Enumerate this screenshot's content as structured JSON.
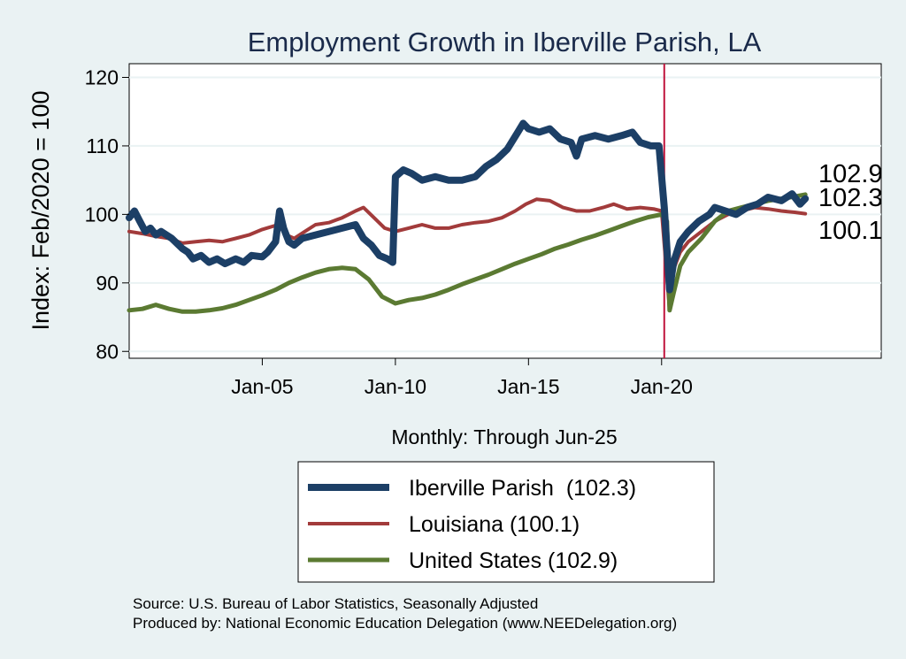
{
  "chart_data": {
    "type": "line",
    "title": "Employment Growth in Iberville Parish, LA",
    "ylabel": "Index: Feb/2020 = 100",
    "xlabel": "Monthly: Through Jun-25",
    "ylim": [
      79,
      122
    ],
    "yticks": [
      80,
      90,
      100,
      110,
      120
    ],
    "xlim": [
      2000.0,
      2028.25
    ],
    "xticks": [
      {
        "value": 2005.0,
        "label": "Jan-05"
      },
      {
        "value": 2010.0,
        "label": "Jan-10"
      },
      {
        "value": 2015.0,
        "label": "Jan-15"
      },
      {
        "value": 2020.0,
        "label": "Jan-20"
      }
    ],
    "reference_line": {
      "x": 2020.1,
      "color": "#c0143c"
    },
    "grid": true,
    "legend": {
      "placement": "bottom"
    },
    "end_labels": [
      "102.9",
      "102.3",
      "100.1"
    ],
    "series": [
      {
        "name": "Iberville Parish  (102.3)",
        "color": "#1c3f66",
        "width": 8,
        "points": [
          [
            2000.0,
            99.5
          ],
          [
            2000.2,
            100.5
          ],
          [
            2000.4,
            99.0
          ],
          [
            2000.6,
            97.5
          ],
          [
            2000.8,
            98.0
          ],
          [
            2001.0,
            97.0
          ],
          [
            2001.2,
            97.5
          ],
          [
            2001.6,
            96.5
          ],
          [
            2002.0,
            95.0
          ],
          [
            2002.2,
            94.5
          ],
          [
            2002.4,
            93.5
          ],
          [
            2002.7,
            94.0
          ],
          [
            2003.0,
            93.0
          ],
          [
            2003.3,
            93.5
          ],
          [
            2003.6,
            92.8
          ],
          [
            2004.0,
            93.5
          ],
          [
            2004.3,
            93.0
          ],
          [
            2004.6,
            94.0
          ],
          [
            2005.0,
            93.8
          ],
          [
            2005.2,
            94.5
          ],
          [
            2005.5,
            96.0
          ],
          [
            2005.65,
            100.5
          ],
          [
            2005.8,
            98.0
          ],
          [
            2006.0,
            96.0
          ],
          [
            2006.2,
            95.5
          ],
          [
            2006.5,
            96.5
          ],
          [
            2007.0,
            97.0
          ],
          [
            2007.5,
            97.5
          ],
          [
            2008.0,
            98.0
          ],
          [
            2008.5,
            98.5
          ],
          [
            2008.8,
            96.5
          ],
          [
            2009.1,
            95.5
          ],
          [
            2009.4,
            94.0
          ],
          [
            2009.7,
            93.5
          ],
          [
            2009.9,
            93.0
          ],
          [
            2010.0,
            105.5
          ],
          [
            2010.3,
            106.5
          ],
          [
            2010.6,
            106.0
          ],
          [
            2011.0,
            105.0
          ],
          [
            2011.5,
            105.5
          ],
          [
            2012.0,
            105.0
          ],
          [
            2012.5,
            105.0
          ],
          [
            2013.0,
            105.5
          ],
          [
            2013.4,
            107.0
          ],
          [
            2013.8,
            108.0
          ],
          [
            2014.2,
            109.5
          ],
          [
            2014.6,
            112.0
          ],
          [
            2014.8,
            113.3
          ],
          [
            2015.0,
            112.5
          ],
          [
            2015.4,
            112.0
          ],
          [
            2015.8,
            112.5
          ],
          [
            2016.2,
            111.0
          ],
          [
            2016.6,
            110.5
          ],
          [
            2016.8,
            108.5
          ],
          [
            2017.0,
            111.0
          ],
          [
            2017.5,
            111.5
          ],
          [
            2018.0,
            111.0
          ],
          [
            2018.5,
            111.5
          ],
          [
            2018.9,
            112.0
          ],
          [
            2019.2,
            110.5
          ],
          [
            2019.6,
            110.0
          ],
          [
            2019.9,
            110.0
          ],
          [
            2020.1,
            101.0
          ],
          [
            2020.3,
            89.0
          ],
          [
            2020.45,
            93.0
          ],
          [
            2020.7,
            96.0
          ],
          [
            2021.0,
            97.5
          ],
          [
            2021.4,
            99.0
          ],
          [
            2021.8,
            100.0
          ],
          [
            2022.0,
            101.0
          ],
          [
            2022.4,
            100.5
          ],
          [
            2022.8,
            100.0
          ],
          [
            2023.2,
            101.0
          ],
          [
            2023.6,
            101.5
          ],
          [
            2024.0,
            102.5
          ],
          [
            2024.5,
            102.0
          ],
          [
            2024.9,
            103.0
          ],
          [
            2025.2,
            101.5
          ],
          [
            2025.4,
            102.3
          ]
        ]
      },
      {
        "name": "Louisiana (100.1)",
        "color": "#a23b3b",
        "width": 4,
        "points": [
          [
            2000.0,
            97.5
          ],
          [
            2000.5,
            97.2
          ],
          [
            2001.0,
            96.8
          ],
          [
            2001.5,
            96.5
          ],
          [
            2002.0,
            95.8
          ],
          [
            2002.5,
            96.0
          ],
          [
            2003.0,
            96.2
          ],
          [
            2003.5,
            96.0
          ],
          [
            2004.0,
            96.5
          ],
          [
            2004.5,
            97.0
          ],
          [
            2005.0,
            97.8
          ],
          [
            2005.6,
            98.5
          ],
          [
            2005.9,
            97.0
          ],
          [
            2006.2,
            96.5
          ],
          [
            2006.6,
            97.5
          ],
          [
            2007.0,
            98.5
          ],
          [
            2007.5,
            98.8
          ],
          [
            2008.0,
            99.5
          ],
          [
            2008.5,
            100.5
          ],
          [
            2008.8,
            101.0
          ],
          [
            2009.2,
            99.5
          ],
          [
            2009.6,
            98.0
          ],
          [
            2010.0,
            97.5
          ],
          [
            2010.5,
            98.0
          ],
          [
            2011.0,
            98.5
          ],
          [
            2011.5,
            98.0
          ],
          [
            2012.0,
            98.0
          ],
          [
            2012.5,
            98.5
          ],
          [
            2013.0,
            98.8
          ],
          [
            2013.5,
            99.0
          ],
          [
            2014.0,
            99.5
          ],
          [
            2014.5,
            100.5
          ],
          [
            2014.9,
            101.5
          ],
          [
            2015.3,
            102.2
          ],
          [
            2015.8,
            102.0
          ],
          [
            2016.3,
            101.0
          ],
          [
            2016.8,
            100.5
          ],
          [
            2017.3,
            100.5
          ],
          [
            2017.8,
            101.0
          ],
          [
            2018.2,
            101.5
          ],
          [
            2018.7,
            100.8
          ],
          [
            2019.2,
            101.0
          ],
          [
            2019.7,
            100.8
          ],
          [
            2020.0,
            100.5
          ],
          [
            2020.3,
            86.0
          ],
          [
            2020.45,
            92.0
          ],
          [
            2020.7,
            94.5
          ],
          [
            2021.0,
            96.0
          ],
          [
            2021.5,
            97.5
          ],
          [
            2022.0,
            99.0
          ],
          [
            2022.5,
            100.0
          ],
          [
            2023.0,
            100.5
          ],
          [
            2023.5,
            101.0
          ],
          [
            2024.0,
            100.8
          ],
          [
            2024.5,
            100.5
          ],
          [
            2025.0,
            100.3
          ],
          [
            2025.4,
            100.1
          ]
        ]
      },
      {
        "name": "United States (102.9)",
        "color": "#5b7a32",
        "width": 5,
        "points": [
          [
            2000.0,
            86.0
          ],
          [
            2000.5,
            86.2
          ],
          [
            2001.0,
            86.8
          ],
          [
            2001.5,
            86.2
          ],
          [
            2002.0,
            85.8
          ],
          [
            2002.5,
            85.8
          ],
          [
            2003.0,
            86.0
          ],
          [
            2003.5,
            86.3
          ],
          [
            2004.0,
            86.8
          ],
          [
            2004.5,
            87.5
          ],
          [
            2005.0,
            88.2
          ],
          [
            2005.5,
            89.0
          ],
          [
            2006.0,
            90.0
          ],
          [
            2006.5,
            90.8
          ],
          [
            2007.0,
            91.5
          ],
          [
            2007.5,
            92.0
          ],
          [
            2008.0,
            92.2
          ],
          [
            2008.5,
            92.0
          ],
          [
            2009.0,
            90.5
          ],
          [
            2009.5,
            88.0
          ],
          [
            2010.0,
            87.0
          ],
          [
            2010.5,
            87.5
          ],
          [
            2011.0,
            87.8
          ],
          [
            2011.5,
            88.3
          ],
          [
            2012.0,
            89.0
          ],
          [
            2012.5,
            89.8
          ],
          [
            2013.0,
            90.5
          ],
          [
            2013.5,
            91.2
          ],
          [
            2014.0,
            92.0
          ],
          [
            2014.5,
            92.8
          ],
          [
            2015.0,
            93.5
          ],
          [
            2015.5,
            94.2
          ],
          [
            2016.0,
            95.0
          ],
          [
            2016.5,
            95.6
          ],
          [
            2017.0,
            96.3
          ],
          [
            2017.5,
            96.9
          ],
          [
            2018.0,
            97.6
          ],
          [
            2018.5,
            98.3
          ],
          [
            2019.0,
            99.0
          ],
          [
            2019.5,
            99.6
          ],
          [
            2020.0,
            100.0
          ],
          [
            2020.2,
            99.0
          ],
          [
            2020.3,
            86.0
          ],
          [
            2020.45,
            88.5
          ],
          [
            2020.7,
            92.5
          ],
          [
            2021.0,
            94.5
          ],
          [
            2021.5,
            96.5
          ],
          [
            2022.0,
            99.0
          ],
          [
            2022.5,
            100.5
          ],
          [
            2023.0,
            101.0
          ],
          [
            2023.5,
            101.5
          ],
          [
            2024.0,
            102.0
          ],
          [
            2024.5,
            102.3
          ],
          [
            2025.0,
            102.6
          ],
          [
            2025.4,
            102.9
          ]
        ]
      }
    ]
  },
  "footer": {
    "source": "Source: U.S. Bureau of Labor Statistics, Seasonally Adjusted",
    "produced": "Produced by: National Economic Education Delegation (www.NEEDelegation.org)"
  }
}
